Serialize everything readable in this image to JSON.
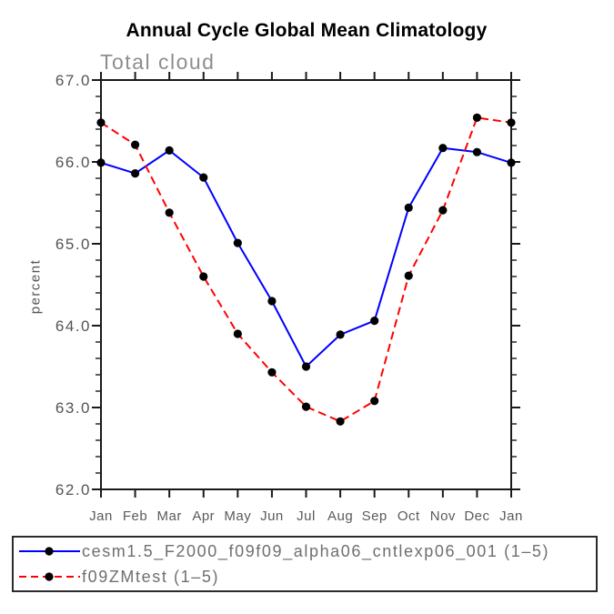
{
  "title": "Annual Cycle Global Mean Climatology",
  "subtitle": "Total cloud",
  "colors": {
    "axis": "#1a1a1a",
    "axis_text": "#545454",
    "subtitle_text": "#8e8e8e",
    "legend_text": "#6f6f6f",
    "title_text": "#000000",
    "marker": "#000000",
    "series_blue": "#0000ff",
    "series_red": "#ff0000"
  },
  "chart_data": {
    "type": "line",
    "title": "Annual Cycle Global Mean Climatology",
    "subtitle": "Total cloud",
    "xlabel": "",
    "ylabel": "percent",
    "ylim": [
      62.0,
      67.0
    ],
    "ytick_step": 1.0,
    "yminor_step": 0.2,
    "ytick_labels": [
      "62.0",
      "63.0",
      "64.0",
      "65.0",
      "66.0",
      "67.0"
    ],
    "categories": [
      "Jan",
      "Feb",
      "Mar",
      "Apr",
      "May",
      "Jun",
      "Jul",
      "Aug",
      "Sep",
      "Oct",
      "Nov",
      "Dec",
      "Jan"
    ],
    "grid": false,
    "legend_position": "bottom-left-box",
    "series": [
      {
        "name": "cesm1.5_F2000_f09f09_alpha06_cntlexp06_001 (1–5)",
        "color": "#0000ff",
        "line_style": "solid",
        "marker": "filled-circle",
        "marker_color": "#000000",
        "values": [
          65.99,
          65.86,
          66.14,
          65.81,
          65.01,
          64.3,
          63.5,
          63.89,
          64.06,
          65.44,
          66.17,
          66.12,
          65.99
        ]
      },
      {
        "name": "f09ZMtest (1–5)",
        "color": "#ff0000",
        "line_style": "dashed",
        "marker": "filled-circle",
        "marker_color": "#000000",
        "values": [
          66.48,
          66.21,
          65.38,
          64.6,
          63.9,
          63.43,
          63.01,
          62.83,
          63.08,
          64.61,
          65.41,
          66.54,
          66.48
        ]
      }
    ]
  }
}
